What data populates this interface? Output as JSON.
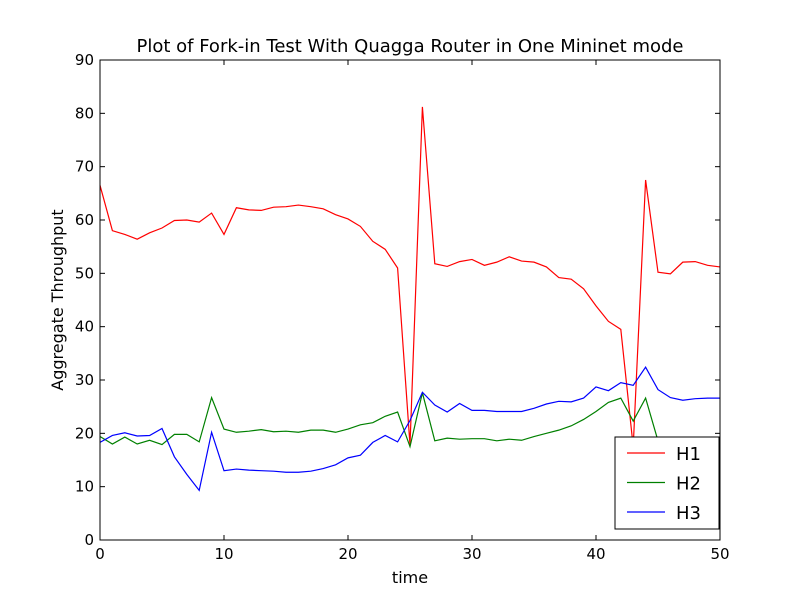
{
  "chart_data": {
    "type": "line",
    "title": "Plot of Fork-in Test With Quagga Router in One Mininet mode",
    "xlabel": "time",
    "ylabel": "Aggregate Throughput",
    "xlim": [
      0,
      50
    ],
    "ylim": [
      0,
      90
    ],
    "xticks": [
      0,
      10,
      20,
      30,
      40,
      50
    ],
    "yticks": [
      0,
      10,
      20,
      30,
      40,
      50,
      60,
      70,
      80,
      90
    ],
    "grid": false,
    "legend_position": "lower-right",
    "x": [
      0,
      1,
      2,
      3,
      4,
      5,
      6,
      7,
      8,
      9,
      10,
      11,
      12,
      13,
      14,
      15,
      16,
      17,
      18,
      19,
      20,
      21,
      22,
      23,
      24,
      25,
      26,
      27,
      28,
      29,
      30,
      31,
      32,
      33,
      34,
      35,
      36,
      37,
      38,
      39,
      40,
      41,
      42,
      43,
      44,
      45,
      46,
      47,
      48,
      49,
      50
    ],
    "series": [
      {
        "name": "H1",
        "color": "#ff0000",
        "values": [
          66.5,
          58.0,
          57.3,
          56.4,
          57.6,
          58.5,
          59.9,
          60.0,
          59.6,
          61.3,
          57.3,
          62.3,
          61.9,
          61.8,
          62.4,
          62.5,
          62.8,
          62.5,
          62.1,
          61.0,
          60.2,
          58.8,
          56.0,
          54.5,
          51.0,
          17.8,
          81.2,
          51.8,
          51.3,
          52.2,
          52.6,
          51.5,
          52.1,
          53.1,
          52.3,
          52.1,
          51.2,
          49.2,
          48.9,
          47.1,
          43.9,
          41.0,
          39.5,
          17.5,
          67.5,
          50.2,
          49.9,
          52.1,
          52.2,
          51.5,
          51.2
        ]
      },
      {
        "name": "H2",
        "color": "#008000",
        "values": [
          19.4,
          18.0,
          19.3,
          18.0,
          18.7,
          17.9,
          19.8,
          19.8,
          18.4,
          26.7,
          20.8,
          20.2,
          20.4,
          20.7,
          20.3,
          20.4,
          20.2,
          20.6,
          20.6,
          20.2,
          20.8,
          21.6,
          22.0,
          23.2,
          24.0,
          17.5,
          27.6,
          18.6,
          19.1,
          18.9,
          19.0,
          19.0,
          18.6,
          18.9,
          18.7,
          19.4,
          20.0,
          20.6,
          21.4,
          22.6,
          24.1,
          25.8,
          26.6,
          22.3,
          26.6,
          18.6,
          17.5,
          17.3,
          17.0,
          16.8,
          16.5
        ]
      },
      {
        "name": "H3",
        "color": "#0000ff",
        "values": [
          18.3,
          19.6,
          20.1,
          19.5,
          19.6,
          20.9,
          15.6,
          12.3,
          9.3,
          20.2,
          13.0,
          13.3,
          13.1,
          13.0,
          12.9,
          12.7,
          12.7,
          12.9,
          13.4,
          14.1,
          15.4,
          15.9,
          18.3,
          19.6,
          18.4,
          22.4,
          27.7,
          25.3,
          24.0,
          25.6,
          24.3,
          24.3,
          24.1,
          24.1,
          24.1,
          24.7,
          25.5,
          26.0,
          25.9,
          26.6,
          28.7,
          28.0,
          29.5,
          29.0,
          32.4,
          28.2,
          26.7,
          26.2,
          26.5,
          26.6,
          26.6
        ]
      }
    ]
  }
}
